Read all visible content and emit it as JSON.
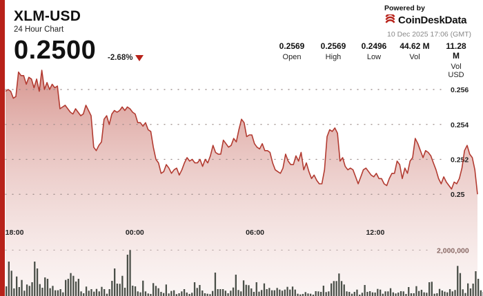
{
  "header": {
    "pair": "XLM-USD",
    "subtitle": "24 Hour Chart",
    "price": "0.2500",
    "change": "-2.68%",
    "powered_by": "Powered by",
    "brand": "CoinDeskData",
    "timestamp": "10 Dec 2025 17:06 (GMT)"
  },
  "stats": [
    {
      "value": "0.2569",
      "label": "Open"
    },
    {
      "value": "0.2569",
      "label": "High"
    },
    {
      "value": "0.2496",
      "label": "Low"
    },
    {
      "value": "44.62 M",
      "label": "Vol"
    },
    {
      "value": "11.28 M",
      "label": "Vol USD"
    }
  ],
  "colors": {
    "accent": "#b8221a",
    "line": "#b23a30",
    "volume_bar": "#4a4f48"
  },
  "chart_data": {
    "type": "line",
    "title": "",
    "x_tick_labels": [
      "18:00",
      "00:00",
      "06:00",
      "12:00"
    ],
    "x_tick_hours": [
      0,
      6,
      12,
      18
    ],
    "x_range_hours": [
      -0.45,
      23.1
    ],
    "y_tick_labels": [
      "0.256",
      "0.254",
      "0.252",
      "0.25"
    ],
    "y_tick_values": [
      0.256,
      0.254,
      0.252,
      0.25
    ],
    "ylim": [
      0.2493,
      0.2575
    ],
    "volume_tick_label": "2,000,000",
    "volume_tick_value": 2000000,
    "volume_max": 4200000,
    "grid": "dotted horizontal",
    "series": [
      {
        "values": [
          0.2559,
          0.256,
          0.2559,
          0.2555,
          0.2556,
          0.257,
          0.2568,
          0.2568,
          0.2563,
          0.2567,
          0.2566,
          0.2561,
          0.2566,
          0.2559,
          0.2571,
          0.256,
          0.2564,
          0.256,
          0.2563,
          0.2561,
          0.2562,
          0.2549,
          0.255,
          0.2551,
          0.2549,
          0.2547,
          0.2546,
          0.2549,
          0.2547,
          0.2545,
          0.2546,
          0.2551,
          0.2548,
          0.2545,
          0.2527,
          0.2525,
          0.2528,
          0.253,
          0.2543,
          0.2545,
          0.254,
          0.2546,
          0.2548,
          0.2547,
          0.2548,
          0.255,
          0.2548,
          0.255,
          0.2549,
          0.2547,
          0.2546,
          0.2541,
          0.2541,
          0.2539,
          0.2541,
          0.2537,
          0.2536,
          0.2527,
          0.252,
          0.2518,
          0.2512,
          0.2513,
          0.2517,
          0.2515,
          0.2512,
          0.2514,
          0.2515,
          0.2511,
          0.2514,
          0.2518,
          0.2521,
          0.2519,
          0.252,
          0.2518,
          0.2518,
          0.252,
          0.2516,
          0.252,
          0.2518,
          0.2522,
          0.2528,
          0.2524,
          0.2523,
          0.2523,
          0.2531,
          0.2529,
          0.2527,
          0.2528,
          0.2532,
          0.253,
          0.2537,
          0.2543,
          0.2541,
          0.2533,
          0.2534,
          0.2534,
          0.2529,
          0.2527,
          0.2526,
          0.2529,
          0.2525,
          0.2525,
          0.2524,
          0.2518,
          0.2514,
          0.2513,
          0.2512,
          0.2515,
          0.2523,
          0.2519,
          0.2517,
          0.2517,
          0.2522,
          0.2519,
          0.2524,
          0.2514,
          0.2518,
          0.2513,
          0.2509,
          0.2511,
          0.2508,
          0.2506,
          0.2506,
          0.2514,
          0.2533,
          0.2537,
          0.2536,
          0.2538,
          0.2535,
          0.2519,
          0.2521,
          0.2516,
          0.2514,
          0.2515,
          0.2514,
          0.251,
          0.2506,
          0.251,
          0.2514,
          0.2515,
          0.2513,
          0.2511,
          0.251,
          0.2512,
          0.2509,
          0.2509,
          0.2506,
          0.2505,
          0.2509,
          0.2512,
          0.2512,
          0.2519,
          0.2517,
          0.2509,
          0.2515,
          0.2512,
          0.2519,
          0.2521,
          0.2532,
          0.2529,
          0.2525,
          0.2521,
          0.2525,
          0.2524,
          0.2522,
          0.2518,
          0.2514,
          0.2509,
          0.2506,
          0.251,
          0.2507,
          0.2505,
          0.2503,
          0.2507,
          0.2506,
          0.2509,
          0.2515,
          0.2525,
          0.2528,
          0.2523,
          0.2521,
          0.2514,
          0.25
        ]
      }
    ],
    "volume": [
      420000,
      1500000,
      1100000,
      330000,
      850000,
      390000,
      700000,
      230000,
      500000,
      440000,
      600000,
      1500000,
      1200000,
      520000,
      360000,
      810000,
      750000,
      340000,
      440000,
      250000,
      250000,
      300000,
      160000,
      700000,
      750000,
      1000000,
      880000,
      630000,
      750000,
      200000,
      120000,
      410000,
      230000,
      300000,
      190000,
      310000,
      200000,
      400000,
      300000,
      100000,
      300000,
      660000,
      1200000,
      540000,
      530000,
      880000,
      360000,
      1800000,
      2000000,
      450000,
      420000,
      200000,
      160000,
      670000,
      200000,
      110000,
      90000,
      560000,
      440000,
      340000,
      180000,
      130000,
      500000,
      110000,
      220000,
      250000,
      80000,
      120000,
      200000,
      300000,
      150000,
      90000,
      140000,
      600000,
      350000,
      480000,
      240000,
      120000,
      100000,
      80000,
      220000,
      1020000,
      300000,
      300000,
      300000,
      230000,
      120000,
      230000,
      370000,
      930000,
      260000,
      200000,
      680000,
      490000,
      470000,
      330000,
      180000,
      600000,
      190000,
      260000,
      550000,
      300000,
      350000,
      250000,
      250000,
      350000,
      280000,
      230000,
      280000,
      400000,
      280000,
      410000,
      280000,
      100000,
      70000,
      90000,
      170000,
      110000,
      100000,
      60000,
      210000,
      200000,
      180000,
      450000,
      170000,
      200000,
      550000,
      650000,
      650000,
      980000,
      650000,
      500000,
      200000,
      180000,
      100000,
      180000,
      280000,
      60000,
      140000,
      480000,
      180000,
      210000,
      160000,
      150000,
      310000,
      280000,
      100000,
      200000,
      200000,
      340000,
      160000,
      110000,
      150000,
      210000,
      200000,
      90000,
      390000,
      120000,
      120000,
      430000,
      220000,
      270000,
      160000,
      140000,
      600000,
      620000,
      100000,
      120000,
      310000,
      240000,
      190000,
      160000,
      300000,
      200000,
      260000,
      1310000,
      1000000,
      290000,
      130000,
      550000,
      330000,
      540000,
      1080000,
      750000,
      250000,
      180000,
      130000,
      170000,
      490000,
      1430000,
      1000000,
      4200000
    ]
  }
}
